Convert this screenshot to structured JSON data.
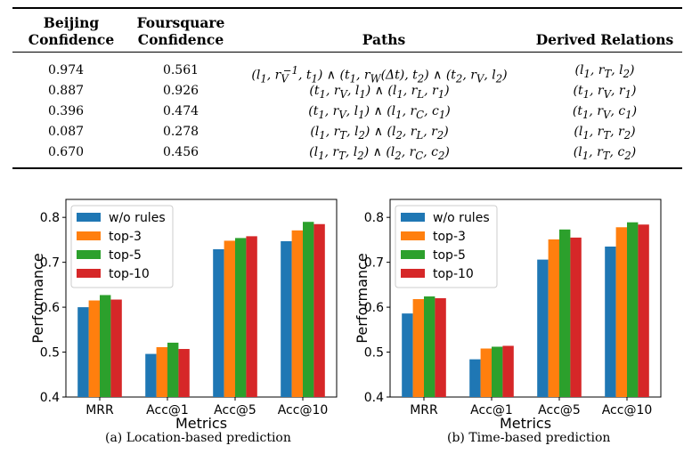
{
  "table": {
    "headers": {
      "beijing_line1": "Beijing",
      "beijing_line2": "Confidence",
      "foursquare_line1": "Foursquare",
      "foursquare_line2": "Confidence",
      "paths": "Paths",
      "derived": "Derived Relations"
    },
    "rows": [
      {
        "beijing": "0.974",
        "foursquare": "0.561",
        "path": "(l1, rV−1, t1) ∧ (t1, rW(Δt), t2) ∧ (t2, rV, l2)",
        "derived": "(l1, rT, l2)"
      },
      {
        "beijing": "0.887",
        "foursquare": "0.926",
        "path": "(t1, rV, l1) ∧ (l1, rL, r1)",
        "derived": "(t1, rV, r1)"
      },
      {
        "beijing": "0.396",
        "foursquare": "0.474",
        "path": "(t1, rV, l1) ∧ (l1, rC, c1)",
        "derived": "(t1, rV, c1)"
      },
      {
        "beijing": "0.087",
        "foursquare": "0.278",
        "path": "(l1, rT, l2) ∧ (l2, rL, r2)",
        "derived": "(l1, rT, r2)"
      },
      {
        "beijing": "0.670",
        "foursquare": "0.456",
        "path": "(l1, rT, l2) ∧ (l2, rC, c2)",
        "derived": "(l1, rT, c2)"
      }
    ]
  },
  "colors": {
    "w/o rules": "#1f77b4",
    "top-3": "#ff7f0e",
    "top-5": "#2ca02c",
    "top-10": "#d62728"
  },
  "chart_data": [
    {
      "type": "bar",
      "caption": "(a)  Location-based prediction",
      "xlabel": "Metrics",
      "ylabel": "Performance",
      "ylim": [
        0.4,
        0.84
      ],
      "yticks": [
        "0.4",
        "0.5",
        "0.6",
        "0.7",
        "0.8"
      ],
      "legend": "top-left",
      "categories": [
        "MRR",
        "Acc@1",
        "Acc@5",
        "Acc@10"
      ],
      "series": [
        {
          "name": "w/o rules",
          "values": [
            0.6,
            0.496,
            0.729,
            0.747
          ]
        },
        {
          "name": "top-3",
          "values": [
            0.615,
            0.511,
            0.748,
            0.771
          ]
        },
        {
          "name": "top-5",
          "values": [
            0.627,
            0.521,
            0.754,
            0.79
          ]
        },
        {
          "name": "top-10",
          "values": [
            0.617,
            0.507,
            0.758,
            0.785
          ]
        }
      ]
    },
    {
      "type": "bar",
      "caption": "(b)  Time-based prediction",
      "xlabel": "Metrics",
      "ylabel": "Performance",
      "ylim": [
        0.4,
        0.84
      ],
      "yticks": [
        "0.4",
        "0.5",
        "0.6",
        "0.7",
        "0.8"
      ],
      "legend": "top-left",
      "categories": [
        "MRR",
        "Acc@1",
        "Acc@5",
        "Acc@10"
      ],
      "series": [
        {
          "name": "w/o rules",
          "values": [
            0.586,
            0.484,
            0.706,
            0.735
          ]
        },
        {
          "name": "top-3",
          "values": [
            0.618,
            0.508,
            0.751,
            0.778
          ]
        },
        {
          "name": "top-5",
          "values": [
            0.624,
            0.512,
            0.773,
            0.789
          ]
        },
        {
          "name": "top-10",
          "values": [
            0.62,
            0.514,
            0.755,
            0.784
          ]
        }
      ]
    }
  ]
}
